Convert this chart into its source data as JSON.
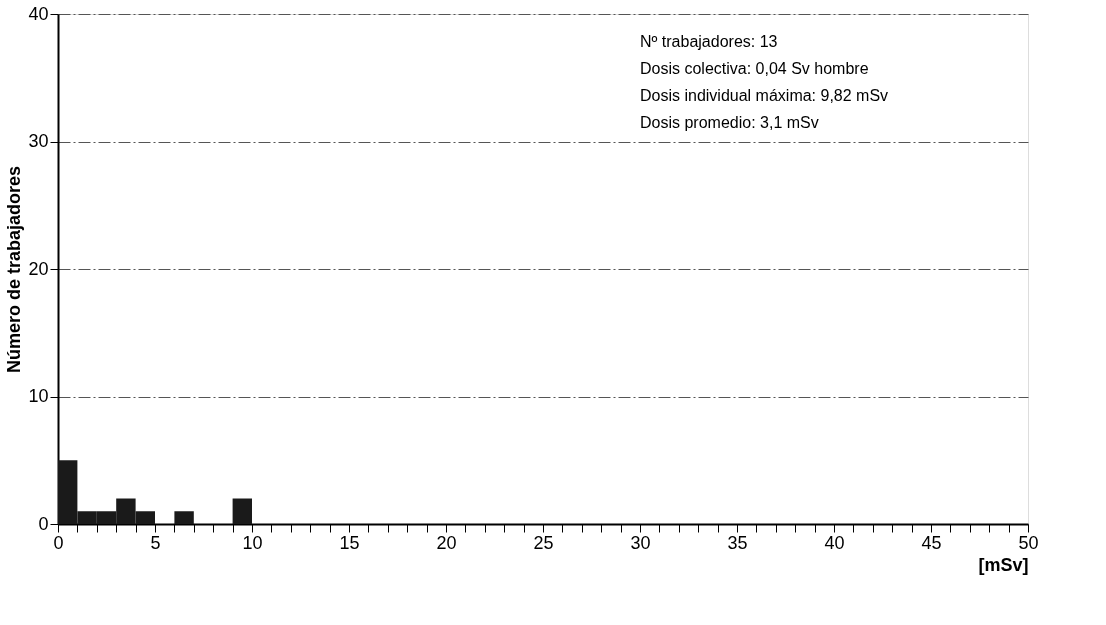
{
  "chart_data": {
    "type": "histogram",
    "xlabel": "[mSv]",
    "ylabel": "Número de trabajadores",
    "bins": [
      0,
      1,
      2,
      3,
      4,
      5,
      6,
      7,
      8,
      9,
      10
    ],
    "values": [
      5,
      1,
      1,
      2,
      1,
      0,
      1,
      0,
      0,
      2
    ],
    "color": "#1a1a1a",
    "xlim": [
      0,
      50
    ],
    "ylim": [
      0,
      40
    ],
    "xticks": [
      0,
      {
        "value": 1,
        "label": null
      },
      {
        "value": 2,
        "label": null
      },
      {
        "value": 3,
        "label": null
      },
      {
        "value": 4,
        "label": null
      },
      5,
      {
        "value": 6,
        "label": null
      },
      {
        "value": 7,
        "label": null
      },
      {
        "value": 8,
        "label": null
      },
      {
        "value": 9,
        "label": null
      },
      10,
      {
        "value": 11,
        "label": null
      },
      {
        "value": 12,
        "label": null
      },
      {
        "value": 13,
        "label": null
      },
      {
        "value": 14,
        "label": null
      },
      15,
      {
        "value": 16,
        "label": null
      },
      {
        "value": 17,
        "label": null
      },
      {
        "value": 18,
        "label": null
      },
      {
        "value": 19,
        "label": null
      },
      20,
      {
        "value": 21,
        "label": null
      },
      {
        "value": 22,
        "label": null
      },
      {
        "value": 23,
        "label": null
      },
      {
        "value": 24,
        "label": null
      },
      25,
      {
        "value": 26,
        "label": null
      },
      {
        "value": 27,
        "label": null
      },
      {
        "value": 28,
        "label": null
      },
      {
        "value": 29,
        "label": null
      },
      30,
      {
        "value": 31,
        "label": null
      },
      {
        "value": 32,
        "label": null
      },
      {
        "value": 33,
        "label": null
      },
      {
        "value": 34,
        "label": null
      },
      35,
      {
        "value": 36,
        "label": null
      },
      {
        "value": 37,
        "label": null
      },
      {
        "value": 38,
        "label": null
      },
      {
        "value": 39,
        "label": null
      },
      40,
      {
        "value": 41,
        "label": null
      },
      {
        "value": 42,
        "label": null
      },
      {
        "value": 43,
        "label": null
      },
      {
        "value": 44,
        "label": null
      },
      45,
      {
        "value": 46,
        "label": null
      },
      {
        "value": 47,
        "label": null
      },
      {
        "value": 48,
        "label": null
      },
      {
        "value": 49,
        "label": null
      },
      50
    ],
    "yticks": [
      0,
      10,
      20,
      30,
      40
    ],
    "grid": "y",
    "annotations": [
      "Nº trabajadores: 13",
      "Dosis colectiva: 0,04 Sv hombre",
      "Dosis individual máxima: 9,82 mSv",
      "Dosis promedio: 3,1 mSv"
    ]
  }
}
